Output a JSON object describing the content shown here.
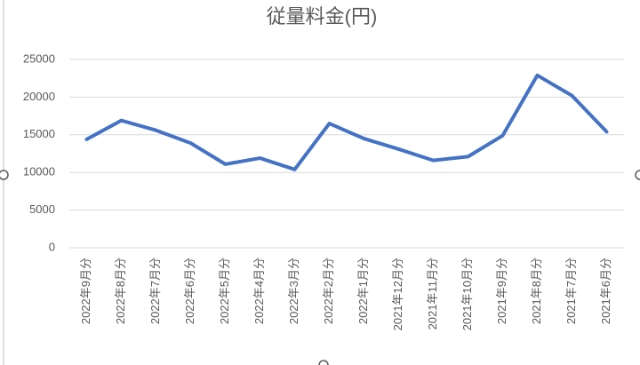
{
  "chart_data": {
    "type": "line",
    "title": "従量料金(円)",
    "categories": [
      "2022年9月分",
      "2022年8月分",
      "2022年7月分",
      "2022年6月分",
      "2022年5月分",
      "2022年4月分",
      "2022年3月分",
      "2022年2月分",
      "2022年1月分",
      "2021年12月分",
      "2021年11月分",
      "2021年10月分",
      "2021年9月分",
      "2021年8月分",
      "2021年7月分",
      "2021年6月分"
    ],
    "series": [
      {
        "color": "#4472c4",
        "values": [
          14400,
          16900,
          15600,
          13900,
          11100,
          11900,
          10400,
          16500,
          14500,
          13100,
          11600,
          12100,
          14900,
          22900,
          20200,
          15400
        ]
      }
    ],
    "ylim": [
      0,
      25000
    ],
    "yticks": [
      0,
      5000,
      10000,
      15000,
      20000,
      25000
    ],
    "grid": true
  }
}
